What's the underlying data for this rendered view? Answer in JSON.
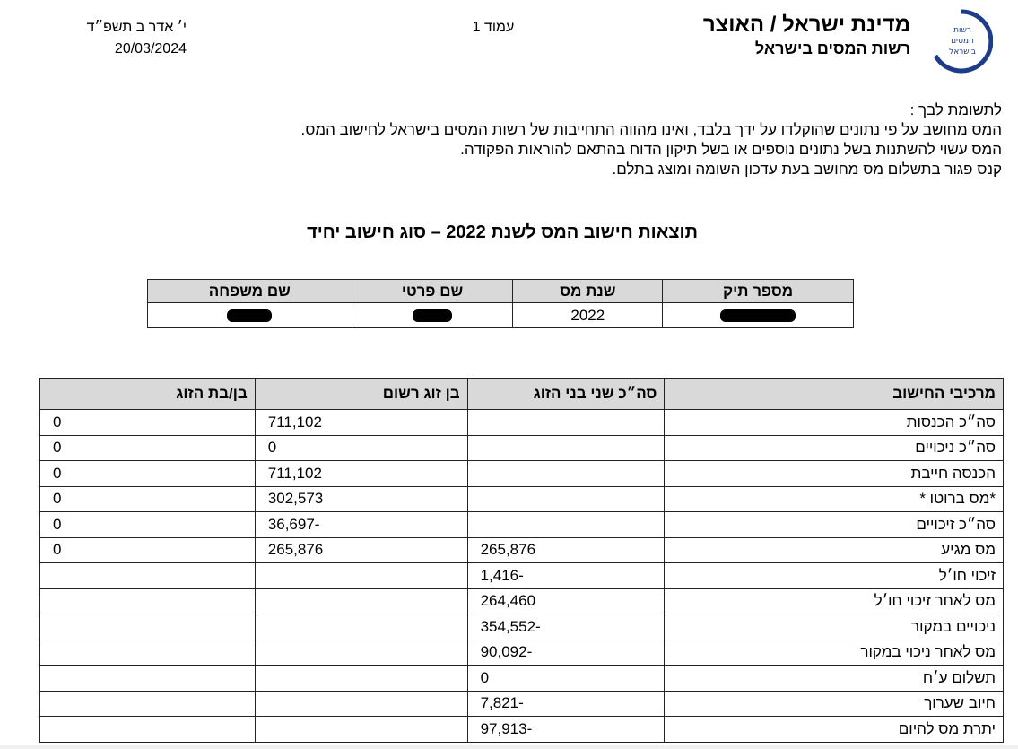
{
  "header": {
    "logo_text": "רשות המסים בישראל",
    "org_line1": "מדינת ישראל / האוצר",
    "org_line2": "רשות המסים בישראל",
    "page_label": "עמוד 1",
    "hebrew_date": "י׳ אדר ב תשפ״ד",
    "gregorian_date": "20/03/2024"
  },
  "notice": {
    "heading": "לתשומת לבך :",
    "lines": [
      "המס מחושב על פי נתונים שהוקלדו על ידך בלבד, ואינו מהווה התחייבות של רשות המסים בישראל לחישוב המס.",
      "המס עשוי להשתנות בשל נתונים נוספים או בשל תיקון הדוח בהתאם להוראות הפקודה.",
      "קנס פגור בתשלום מס מחושב בעת עדכון השומה ומוצג בתלם."
    ]
  },
  "title": "תוצאות חישוב המס לשנת 2022 – סוג חישוב יחיד",
  "id_table": {
    "headers": [
      "מספר תיק",
      "שנת מס",
      "שם פרטי",
      "שם משפחה"
    ],
    "tax_year": "2022"
  },
  "calc_table": {
    "headers": [
      "מרכיבי החישוב",
      "סה״כ שני בני הזוג",
      "בן זוג רשום",
      "בן/בת הזוג"
    ],
    "rows": [
      {
        "label": "סה״כ  הכנסות",
        "total": "",
        "registered": "711,102",
        "spouse": "0"
      },
      {
        "label": "סה״כ  ניכויים",
        "total": "",
        "registered": "0",
        "spouse": "0"
      },
      {
        "label": "הכנסה חייבת",
        "total": "",
        "registered": "711,102",
        "spouse": "0"
      },
      {
        "label": "*מס ברוטו *",
        "total": "",
        "registered": "302,573",
        "spouse": "0"
      },
      {
        "label": "סה״כ זיכויים",
        "total": "",
        "registered": "-36,697",
        "spouse": "0"
      },
      {
        "label": "מס מגיע",
        "total": "265,876",
        "registered": "265,876",
        "spouse": "0"
      },
      {
        "label": "זיכוי חו׳ל",
        "total": "-1,416",
        "registered": "",
        "spouse": ""
      },
      {
        "label": "מס לאחר זיכוי חו׳ל",
        "total": "264,460",
        "registered": "",
        "spouse": ""
      },
      {
        "label": "ניכויים במקור",
        "total": "-354,552",
        "registered": "",
        "spouse": ""
      },
      {
        "label": "מס לאחר ניכוי במקור",
        "total": "-90,092",
        "registered": "",
        "spouse": ""
      },
      {
        "label": "תשלום ע׳ח",
        "total": "0",
        "registered": "",
        "spouse": ""
      },
      {
        "label": "חיוב שערוך",
        "total": "-7,821",
        "registered": "",
        "spouse": ""
      },
      {
        "label": "יתרת מס להיום",
        "total": "-97,913",
        "registered": "",
        "spouse": ""
      }
    ]
  },
  "colors": {
    "header_bg": "#d9d9d9",
    "logo_blue": "#1f3c88"
  }
}
